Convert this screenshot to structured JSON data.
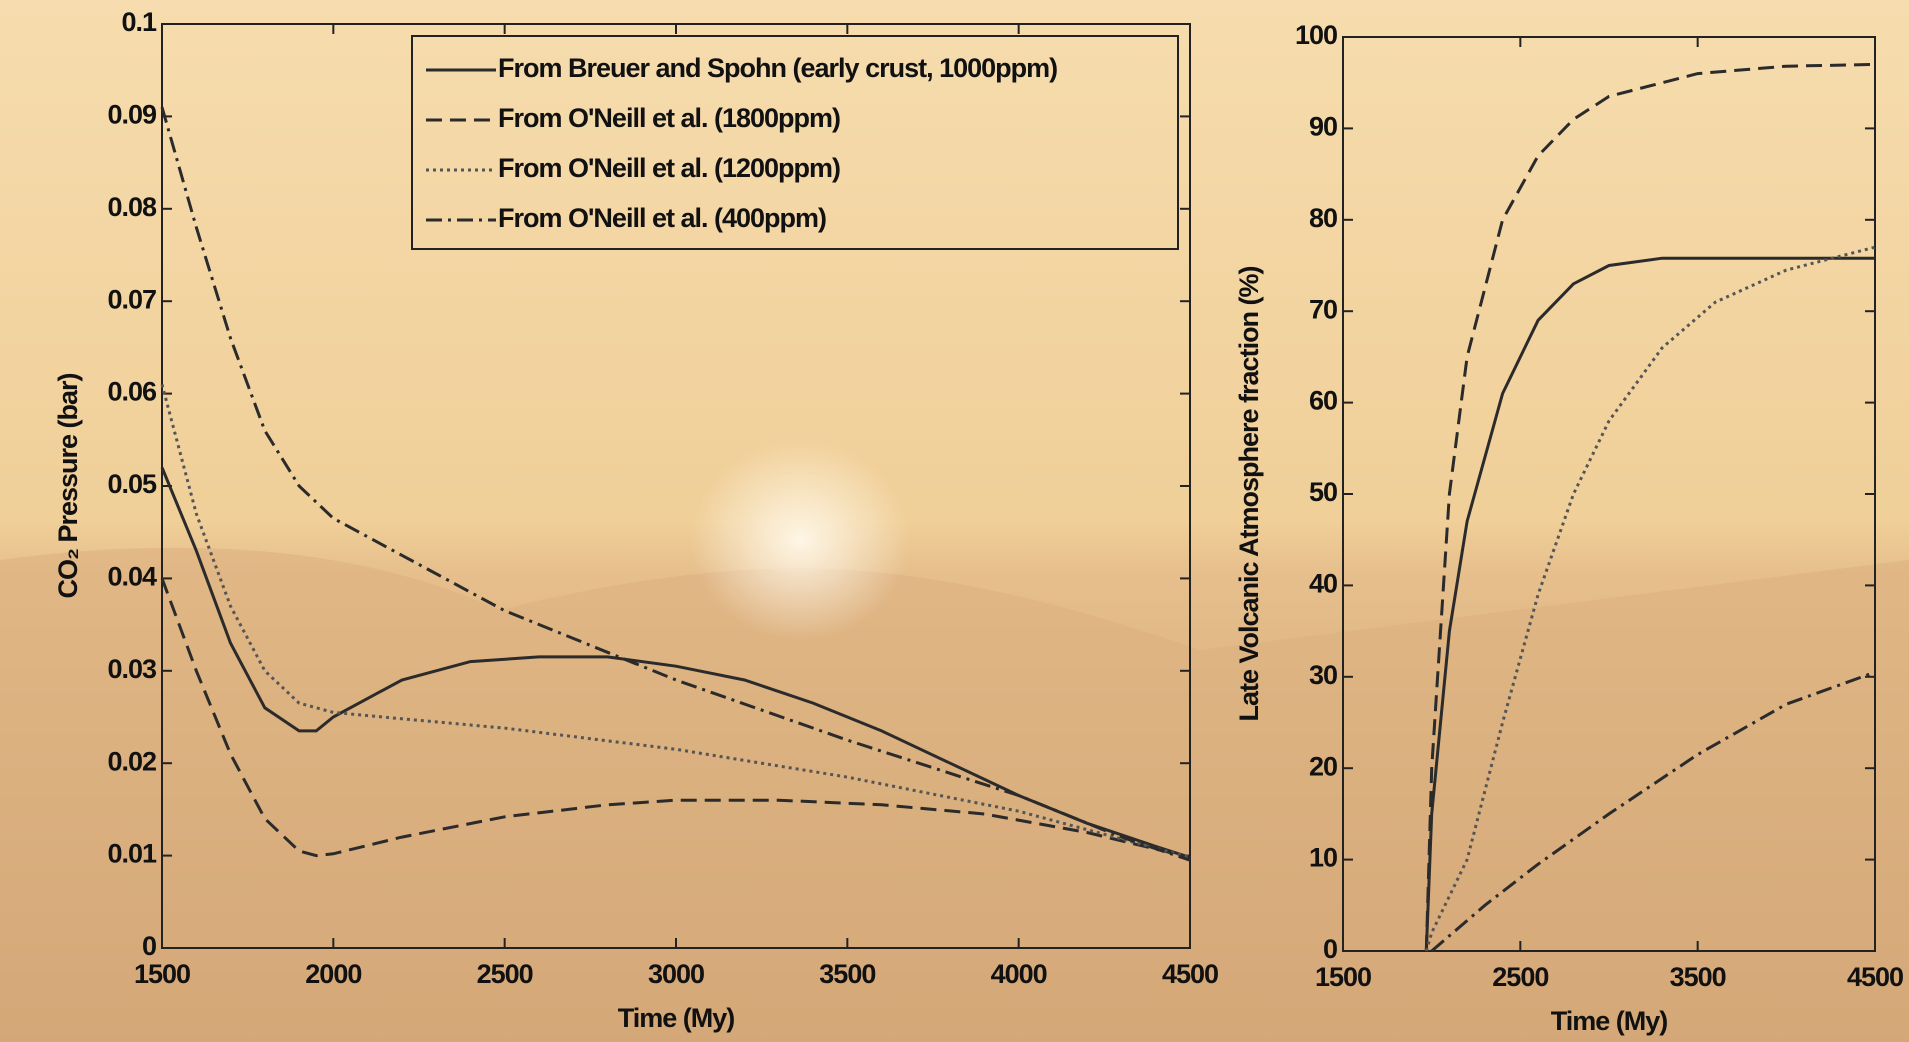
{
  "chart_data": [
    {
      "type": "line",
      "xlabel": "Time (My)",
      "ylabel": "CO₂ Pressure (bar)",
      "xlim": [
        1500,
        4500
      ],
      "xticks": [
        1500,
        2000,
        2500,
        3000,
        3500,
        4000,
        4500
      ],
      "ylim": [
        0,
        0.1
      ],
      "yticks": [
        0,
        0.01,
        0.02,
        0.03,
        0.04,
        0.05,
        0.06,
        0.07,
        0.08,
        0.09,
        0.1
      ],
      "legend": "upper right",
      "series": [
        {
          "name": "From Breuer and Spohn (early crust, 1000ppm)",
          "color": "#2b2b2b",
          "dash": "solid",
          "x": [
            1500,
            1600,
            1700,
            1800,
            1900,
            1950,
            2000,
            2200,
            2400,
            2600,
            2800,
            3000,
            3200,
            3400,
            3600,
            3800,
            4000,
            4200,
            4400,
            4500
          ],
          "values": [
            0.052,
            0.043,
            0.033,
            0.026,
            0.0235,
            0.0235,
            0.025,
            0.029,
            0.031,
            0.0315,
            0.0315,
            0.0305,
            0.029,
            0.0265,
            0.0235,
            0.02,
            0.0165,
            0.0135,
            0.011,
            0.0098
          ]
        },
        {
          "name": "From O'Neill et al. (1800ppm)",
          "color": "#2b2b2b",
          "dash": "dashed",
          "x": [
            1500,
            1600,
            1700,
            1800,
            1900,
            1950,
            2000,
            2200,
            2500,
            2800,
            3000,
            3300,
            3600,
            3900,
            4200,
            4500
          ],
          "values": [
            0.04,
            0.03,
            0.021,
            0.014,
            0.0105,
            0.01,
            0.0102,
            0.012,
            0.0142,
            0.0155,
            0.016,
            0.016,
            0.0155,
            0.0145,
            0.0125,
            0.0098
          ]
        },
        {
          "name": "From O'Neill et al. (1200ppm)",
          "color": "#555555",
          "dash": "dotted",
          "x": [
            1500,
            1600,
            1700,
            1800,
            1900,
            2000,
            2200,
            2500,
            3000,
            3500,
            4000,
            4300,
            4500
          ],
          "values": [
            0.061,
            0.047,
            0.037,
            0.03,
            0.0265,
            0.0255,
            0.0248,
            0.0238,
            0.0215,
            0.0185,
            0.0148,
            0.0118,
            0.0098
          ]
        },
        {
          "name": "From O'Neill et al. (400ppm)",
          "color": "#2b2b2b",
          "dash": "dashdot",
          "x": [
            1500,
            1600,
            1700,
            1800,
            1900,
            2000,
            2200,
            2500,
            2800,
            3000,
            3500,
            4000,
            4300,
            4500
          ],
          "values": [
            0.091,
            0.078,
            0.066,
            0.056,
            0.05,
            0.0465,
            0.0425,
            0.0365,
            0.032,
            0.029,
            0.0225,
            0.0165,
            0.012,
            0.0095
          ]
        }
      ]
    },
    {
      "type": "line",
      "xlabel": "Time (My)",
      "ylabel": "Late Volcanic Atmosphere fraction (%)",
      "xlim": [
        1500,
        4500
      ],
      "xticks": [
        1500,
        2500,
        3500,
        4500
      ],
      "ylim": [
        0,
        100
      ],
      "yticks": [
        0,
        10,
        20,
        30,
        40,
        50,
        60,
        70,
        80,
        90,
        100
      ],
      "series": [
        {
          "color": "#2b2b2b",
          "dash": "dashed",
          "x": [
            1970,
            2000,
            2100,
            2200,
            2400,
            2600,
            2800,
            3000,
            3500,
            4000,
            4500
          ],
          "values": [
            0,
            20,
            50,
            65,
            80,
            87,
            91,
            93.5,
            96,
            96.8,
            97
          ]
        },
        {
          "color": "#2b2b2b",
          "dash": "solid",
          "x": [
            1970,
            2000,
            2100,
            2200,
            2400,
            2600,
            2800,
            3000,
            3300,
            4500
          ],
          "values": [
            0,
            15,
            35,
            47,
            61,
            69,
            73,
            75,
            75.8,
            75.8
          ]
        },
        {
          "color": "#555555",
          "dash": "dotted",
          "x": [
            1970,
            2000,
            2200,
            2400,
            2600,
            2800,
            3000,
            3300,
            3600,
            4000,
            4500
          ],
          "values": [
            0,
            2,
            10,
            25,
            39,
            50,
            58,
            66,
            71,
            74.5,
            77
          ]
        },
        {
          "color": "#2b2b2b",
          "dash": "dashdot",
          "x": [
            2000,
            2300,
            2600,
            3000,
            3500,
            4000,
            4500
          ],
          "values": [
            0,
            5,
            9.5,
            15,
            21.5,
            27,
            30.5
          ]
        }
      ]
    }
  ]
}
